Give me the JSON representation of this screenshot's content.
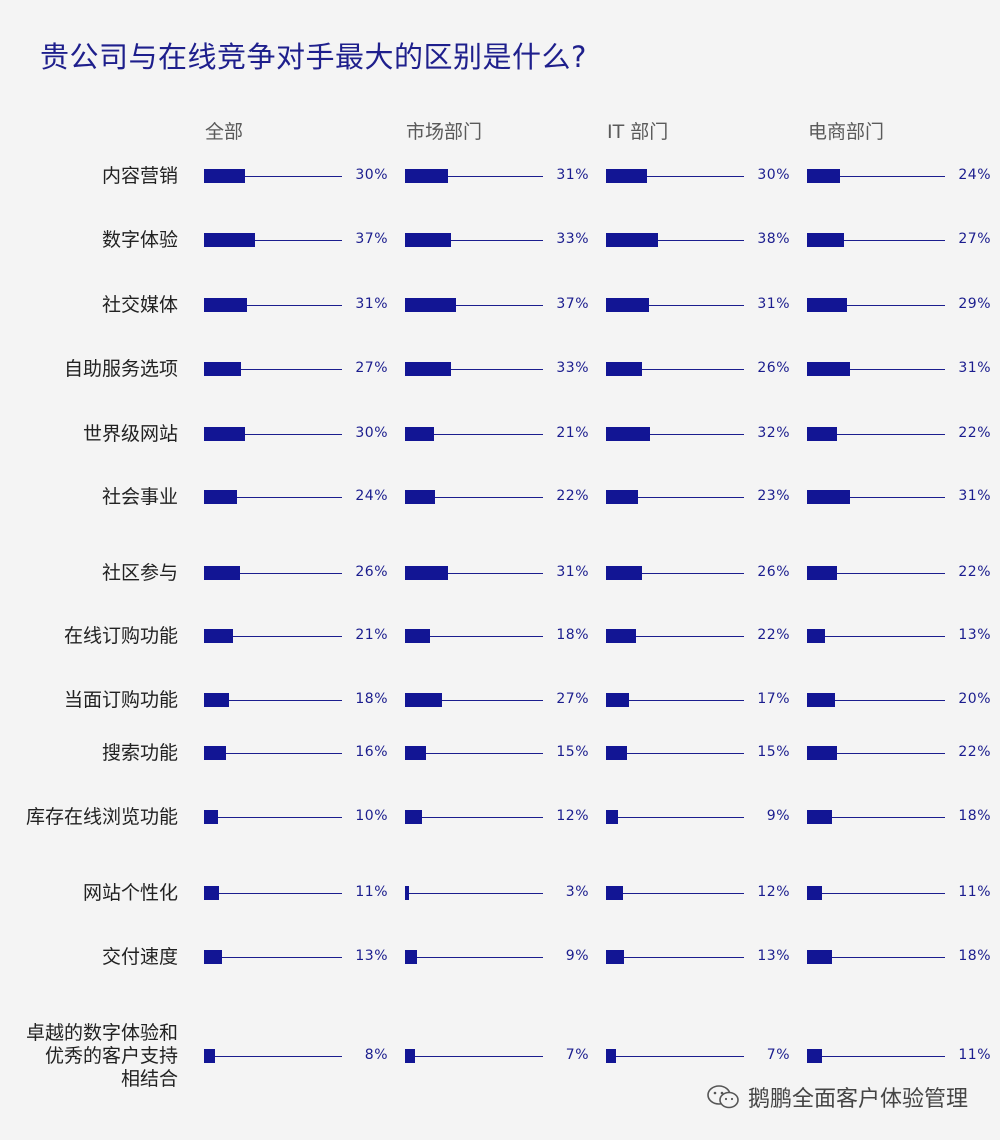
{
  "chart_data": {
    "type": "bar",
    "title": "贵公司与在线竞争对手最大的区别是什么?",
    "value_format": "%",
    "xlim": [
      0,
      100
    ],
    "colors": {
      "bar": "#121594",
      "track": "#1b1d8e",
      "title": "#1e1f8c"
    },
    "series": [
      {
        "name": "全部",
        "values": [
          30,
          37,
          31,
          27,
          30,
          24,
          26,
          21,
          18,
          16,
          10,
          11,
          13,
          8
        ]
      },
      {
        "name": "市场部门",
        "values": [
          31,
          33,
          37,
          33,
          21,
          22,
          31,
          18,
          27,
          15,
          12,
          3,
          9,
          7
        ]
      },
      {
        "name": "IT 部门",
        "values": [
          30,
          38,
          31,
          26,
          32,
          23,
          26,
          22,
          17,
          15,
          9,
          12,
          13,
          7
        ]
      },
      {
        "name": "电商部门",
        "values": [
          24,
          27,
          29,
          31,
          22,
          31,
          22,
          13,
          20,
          22,
          18,
          11,
          18,
          11
        ]
      }
    ],
    "categories": [
      [
        "内容营销"
      ],
      [
        "数字体验"
      ],
      [
        "社交媒体"
      ],
      [
        "自助服务选项"
      ],
      [
        "世界级网站"
      ],
      [
        "社会事业"
      ],
      [
        "社区参与"
      ],
      [
        "在线订购功能"
      ],
      [
        "当面订购功能"
      ],
      [
        "搜索功能"
      ],
      [
        "库存在线浏览功能"
      ],
      [
        "网站个性化"
      ],
      [
        "交付速度"
      ],
      [
        "卓越的数字体验和",
        "优秀的客户支持",
        "相结合"
      ]
    ]
  },
  "watermark": {
    "icon": "wechat-icon",
    "text": "鹅鹏全面客户体验管理"
  }
}
